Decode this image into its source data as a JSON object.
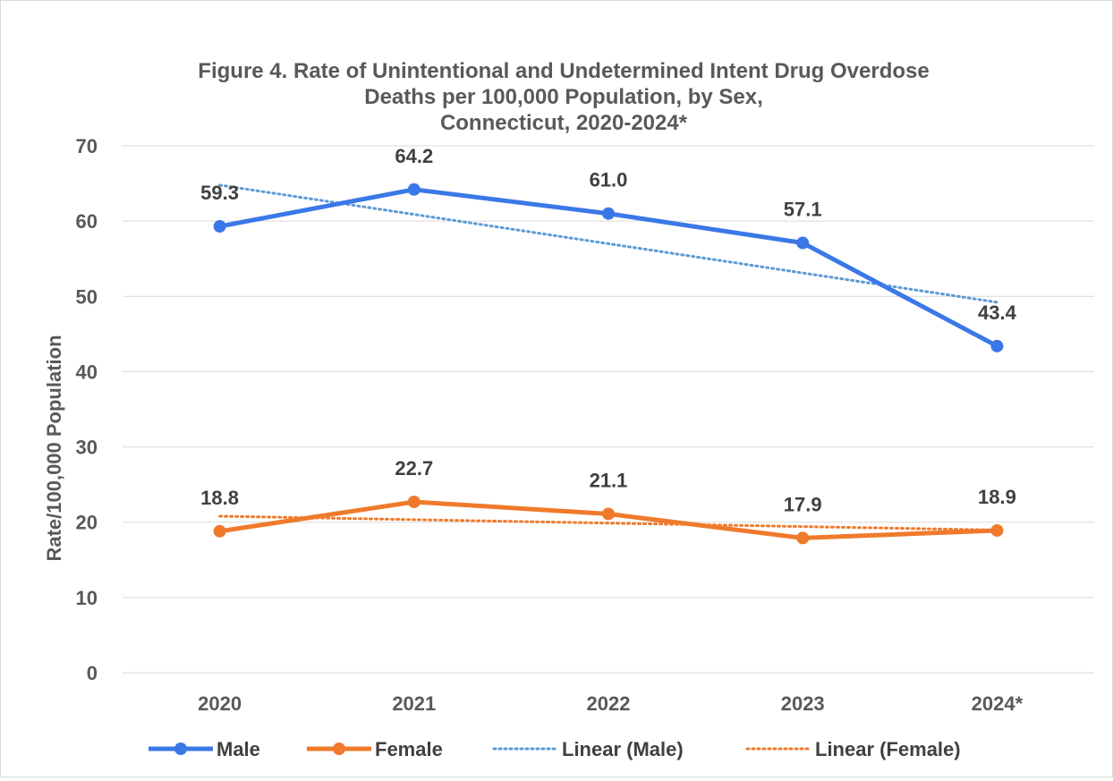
{
  "chart_data": {
    "type": "line",
    "title_lines": [
      "Figure 4. Rate of Unintentional and Undetermined Intent Drug Overdose",
      "Deaths per 100,000 Population, by Sex,",
      "Connecticut, 2020-2024*"
    ],
    "ylabel": "Rate/100,000 Population",
    "xlabel": "",
    "categories": [
      "2020",
      "2021",
      "2022",
      "2023",
      "2024*"
    ],
    "ylim": [
      0,
      70
    ],
    "yticks": [
      "0",
      "10",
      "20",
      "30",
      "40",
      "50",
      "60",
      "70"
    ],
    "grid": true,
    "legend_position": "bottom",
    "series": [
      {
        "name": "Male",
        "values": [
          59.3,
          64.2,
          61.0,
          57.1,
          43.4
        ],
        "labels": [
          "59.3",
          "64.2",
          "61.0",
          "57.1",
          "43.4"
        ],
        "color": "#3b78e7",
        "style": "solid-marker"
      },
      {
        "name": "Female",
        "values": [
          18.8,
          22.7,
          21.1,
          17.9,
          18.9
        ],
        "labels": [
          "18.8",
          "22.7",
          "21.1",
          "17.9",
          "18.9"
        ],
        "color": "#f07a2c",
        "style": "solid-marker"
      }
    ],
    "trendlines": [
      {
        "name": "Linear (Male)",
        "of": "Male",
        "color": "#5b9bd5",
        "style": "dotted"
      },
      {
        "name": "Linear (Female)",
        "of": "Female",
        "color": "#f07a2c",
        "style": "dotted"
      }
    ]
  }
}
